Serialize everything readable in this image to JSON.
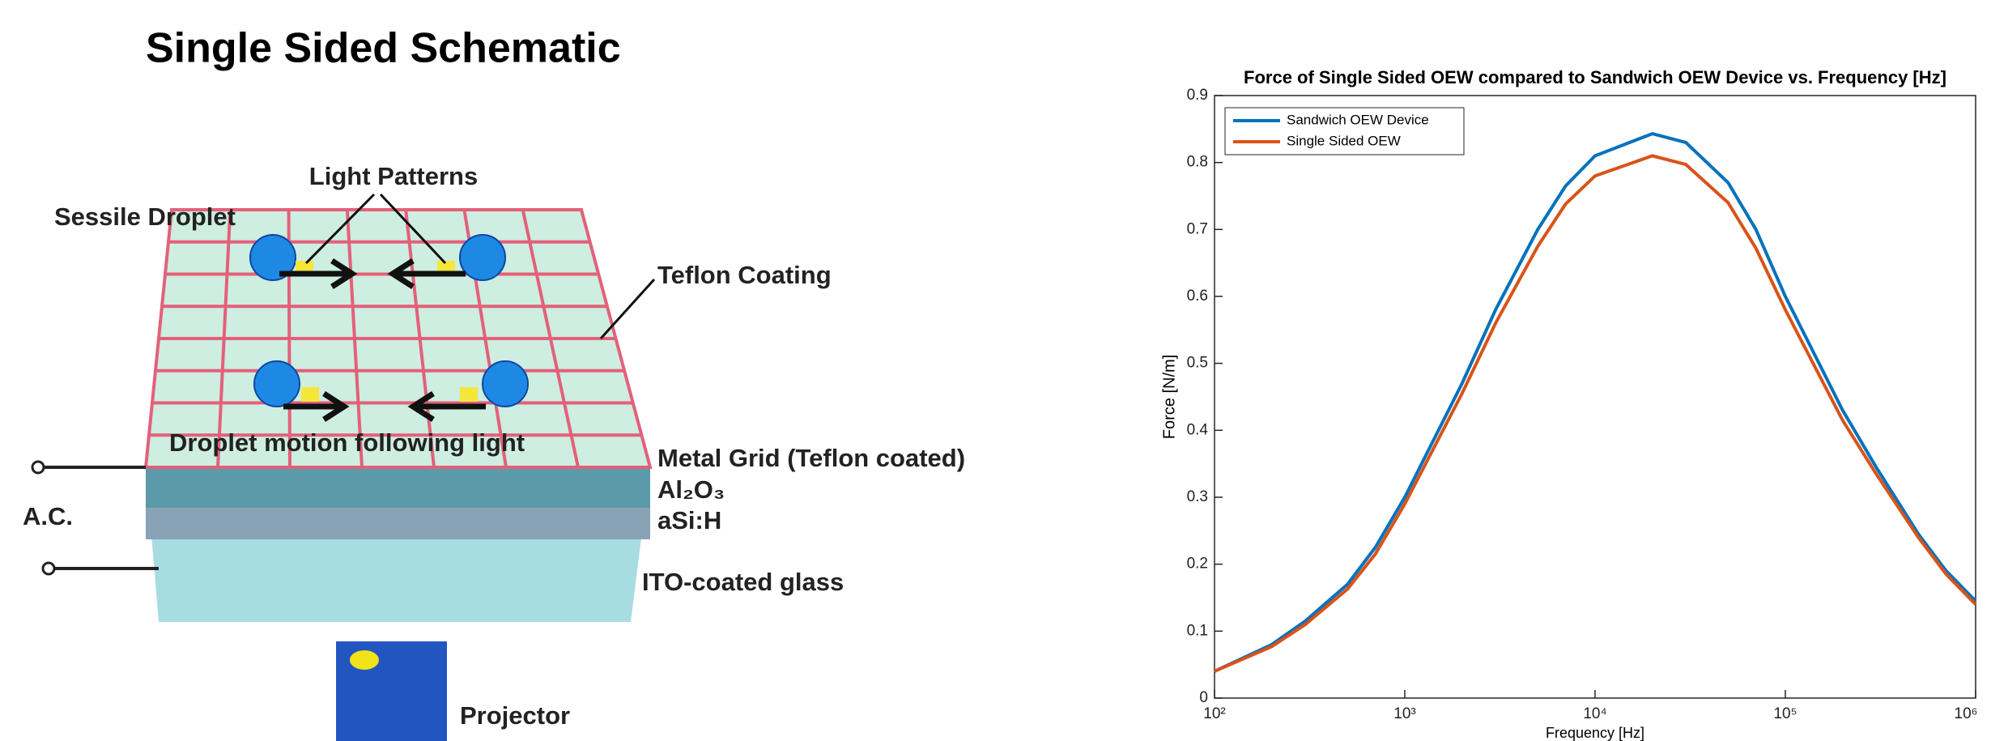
{
  "title": "Single Sided Schematic",
  "schematic": {
    "labels": [
      "Light Patterns",
      "Sessile Droplet",
      "Teflon Coating",
      "Droplet motion following light",
      "Metal Grid (Teflon coated)",
      "Al₂O₃",
      "aSi:H",
      "A.C.",
      "ITO-coated glass",
      "Projector"
    ]
  },
  "chart_data": {
    "type": "line",
    "title": "Force of Single Sided OEW compared to Sandwich OEW Device vs. Frequency [Hz]",
    "x_label": "Frequency [Hz]",
    "y_label": "Force [N/m]",
    "x": [
      100,
      200,
      300,
      500,
      700,
      1000,
      2000,
      3000,
      5000,
      7000,
      10000,
      20000,
      30000,
      50000,
      70000,
      100000,
      200000,
      300000,
      500000,
      700000,
      1000000
    ],
    "series": [
      {
        "name": "Sandwich OEW Device",
        "color": "#0072bd",
        "values": [
          0.04,
          0.08,
          0.115,
          0.17,
          0.225,
          0.3,
          0.47,
          0.58,
          0.7,
          0.765,
          0.81,
          0.843,
          0.83,
          0.77,
          0.7,
          0.6,
          0.43,
          0.345,
          0.245,
          0.19,
          0.145
        ]
      },
      {
        "name": "Single Sided OEW",
        "color": "#d95319",
        "values": [
          0.04,
          0.077,
          0.11,
          0.163,
          0.215,
          0.29,
          0.455,
          0.56,
          0.675,
          0.738,
          0.78,
          0.81,
          0.797,
          0.74,
          0.672,
          0.58,
          0.415,
          0.335,
          0.24,
          0.185,
          0.14
        ]
      }
    ],
    "xscale": "log",
    "xlim": [
      100,
      1000000
    ],
    "xticks": [
      {
        "value": 100,
        "label": "10²"
      },
      {
        "value": 1000,
        "label": "10³"
      },
      {
        "value": 10000,
        "label": "10⁴"
      },
      {
        "value": 100000,
        "label": "10⁵"
      },
      {
        "value": 1000000,
        "label": "10⁶"
      }
    ],
    "ylim": [
      0,
      0.9
    ],
    "yticks": [
      0,
      0.1,
      0.2,
      0.3,
      0.4,
      0.5,
      0.6,
      0.7,
      0.8,
      0.9
    ],
    "legend": "upper left"
  }
}
